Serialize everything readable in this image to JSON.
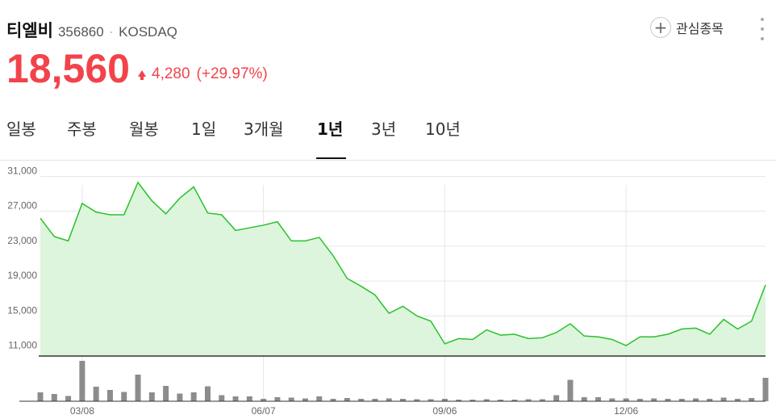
{
  "stock": {
    "name": "티엘비",
    "code": "356860",
    "separator": "·",
    "market": "KOSDAQ",
    "price": "18,560",
    "change": "4,280",
    "change_pct": "(+29.97%)",
    "direction": "up"
  },
  "actions": {
    "watch_icon": "+",
    "watch_label": "관심종목",
    "more_icon": "vertical-dots"
  },
  "tabs": [
    {
      "label": "일봉",
      "active": false
    },
    {
      "label": "주봉",
      "active": false
    },
    {
      "label": "월봉",
      "active": false
    },
    {
      "label": "1일",
      "active": false
    },
    {
      "label": "3개월",
      "active": false
    },
    {
      "label": "1년",
      "active": true
    },
    {
      "label": "3년",
      "active": false
    },
    {
      "label": "10년",
      "active": false
    }
  ],
  "colors": {
    "up": "#f2434b",
    "line": "#2bc12b",
    "area": "#dcf5dc",
    "volume": "#8c8c8c",
    "grid": "#e6e6e6"
  },
  "chart_data": {
    "type": "area",
    "x_labels": [
      "03/08",
      "06/07",
      "09/06",
      "12/06"
    ],
    "y_ticks": [
      31000,
      27000,
      23000,
      19000,
      15000,
      11000
    ],
    "y_tick_labels": [
      "31,000",
      "27,000",
      "23,000",
      "19,000",
      "15,000",
      "11,000"
    ],
    "ylim": [
      10400,
      32800
    ],
    "grid": true,
    "series": [
      {
        "values": [
          26200,
          24100,
          23600,
          27900,
          26900,
          26600,
          26600,
          30300,
          28200,
          26700,
          28500,
          29800,
          26800,
          26600,
          24800,
          25100,
          25400,
          25800,
          23600,
          23600,
          24000,
          21900,
          19300,
          18400,
          17400,
          15300,
          16100,
          15000,
          14400,
          11800,
          12400,
          12300,
          13400,
          12800,
          12900,
          12400,
          12500,
          13100,
          14100,
          12700,
          12600,
          12300,
          11600,
          12600,
          12600,
          12900,
          13500,
          13600,
          12900,
          14600,
          13500,
          14400,
          18560
        ]
      }
    ],
    "volume": [
      22,
      18,
      13,
      100,
      36,
      28,
      23,
      66,
      22,
      38,
      19,
      22,
      37,
      15,
      12,
      12,
      6,
      10,
      9,
      7,
      12,
      6,
      8,
      6,
      6,
      7,
      6,
      5,
      5,
      6,
      4,
      4,
      5,
      4,
      4,
      5,
      5,
      15,
      53,
      10,
      10,
      7,
      7,
      6,
      7,
      6,
      6,
      7,
      6,
      9,
      6,
      8,
      58
    ],
    "x_label_points": [
      3,
      16,
      29,
      42
    ]
  }
}
